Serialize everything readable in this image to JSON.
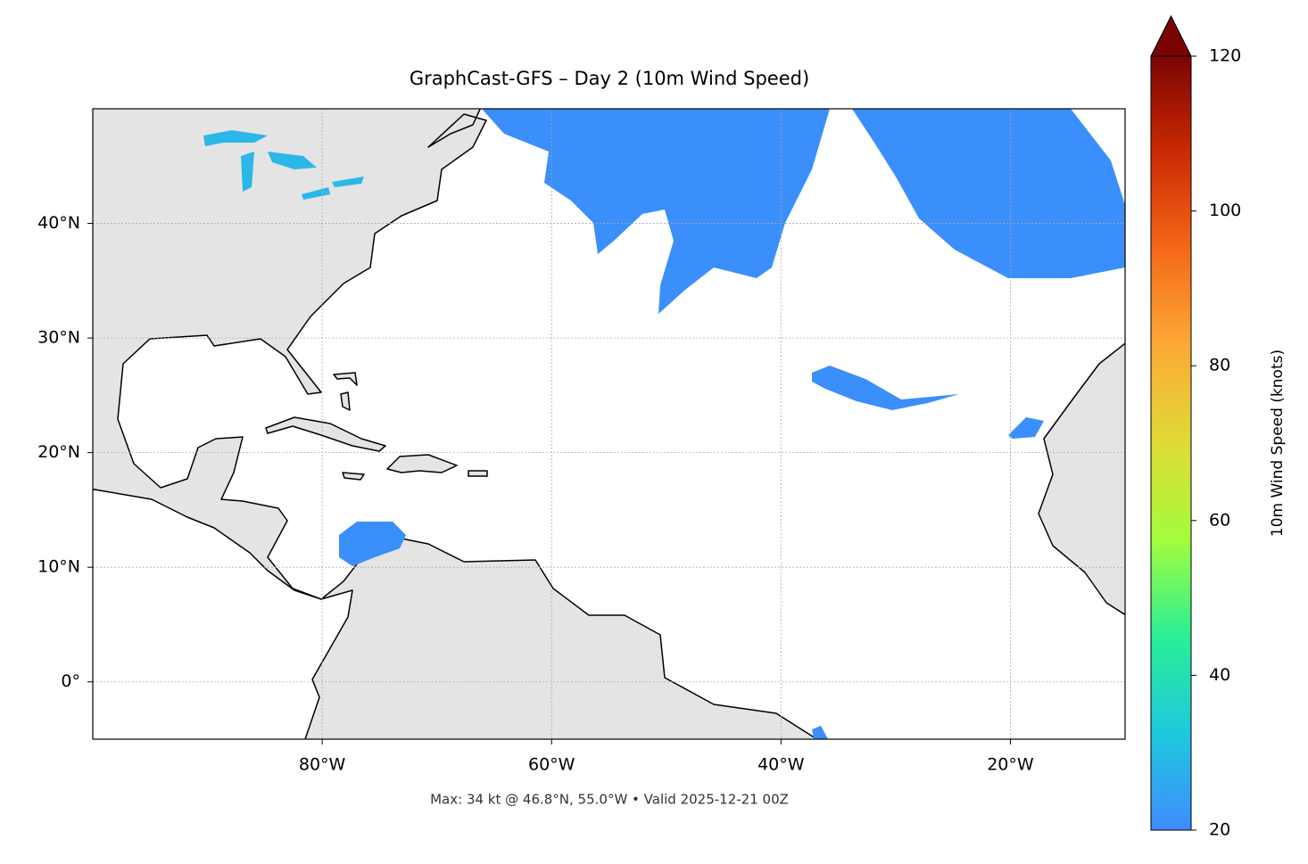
{
  "chart_data": {
    "type": "map",
    "title": "GraphCast-GFS – Day 2 (10m Wind Speed)",
    "subtitle": "Max: 34 kt @ 46.8°N, 55.0°W • Valid 2025-12-21 00Z",
    "xlim": [
      -100,
      -10
    ],
    "ylim": [
      -5,
      50
    ],
    "xticks": [
      {
        "value": -80,
        "label": "80°W"
      },
      {
        "value": -60,
        "label": "60°W"
      },
      {
        "value": -40,
        "label": "40°W"
      },
      {
        "value": -20,
        "label": "20°W"
      }
    ],
    "yticks": [
      {
        "value": 0,
        "label": "0°"
      },
      {
        "value": 10,
        "label": "10°N"
      },
      {
        "value": 20,
        "label": "20°N"
      },
      {
        "value": 30,
        "label": "30°N"
      },
      {
        "value": 40,
        "label": "40°N"
      }
    ],
    "grid": true,
    "colorbar": {
      "label": "10m Wind Speed (knots)",
      "lim": [
        20,
        120
      ],
      "ticks": [
        20,
        40,
        60,
        80,
        100,
        120
      ],
      "colors": [
        "#3e8cff",
        "#1fc8de",
        "#29ef96",
        "#a4fc3c",
        "#e0da37",
        "#fcaa36",
        "#f56918",
        "#cb2a04",
        "#7a0403"
      ]
    }
  }
}
